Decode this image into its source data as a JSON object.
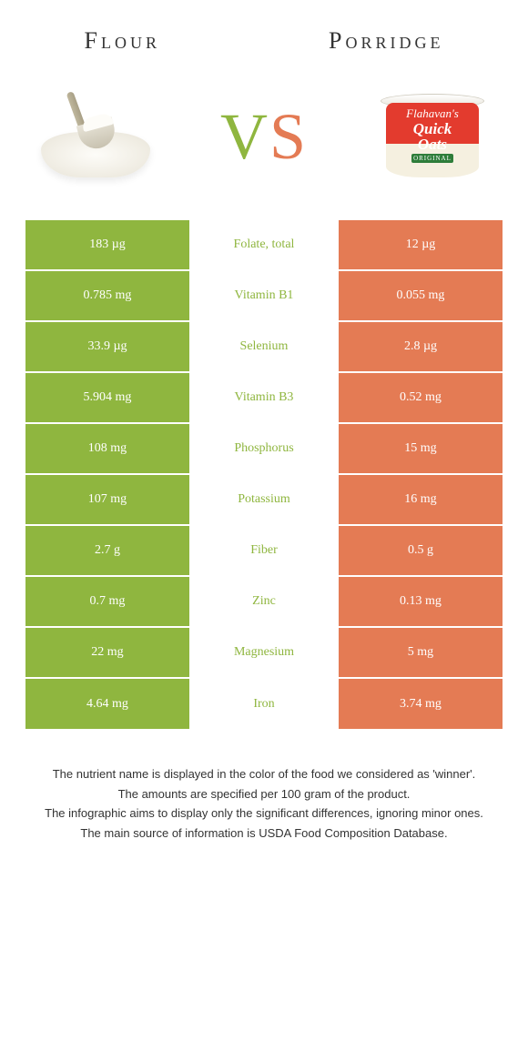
{
  "header": {
    "left_title": "Flour",
    "right_title": "Porridge",
    "vs_v": "V",
    "vs_s": "S"
  },
  "porridge_label": {
    "brand": "Flahavan's",
    "product_line1": "Quick",
    "product_line2": "Oats",
    "variant": "ORIGINAL"
  },
  "colors": {
    "left_bg": "#8fb63f",
    "right_bg": "#e47b54",
    "winner_left": "#8fb63f",
    "winner_right": "#e47b54"
  },
  "rows": [
    {
      "left": "183 µg",
      "label": "Folate, total",
      "right": "12 µg",
      "winner": "left"
    },
    {
      "left": "0.785 mg",
      "label": "Vitamin B1",
      "right": "0.055 mg",
      "winner": "left"
    },
    {
      "left": "33.9 µg",
      "label": "Selenium",
      "right": "2.8 µg",
      "winner": "left"
    },
    {
      "left": "5.904 mg",
      "label": "Vitamin B3",
      "right": "0.52 mg",
      "winner": "left"
    },
    {
      "left": "108 mg",
      "label": "Phosphorus",
      "right": "15 mg",
      "winner": "left"
    },
    {
      "left": "107 mg",
      "label": "Potassium",
      "right": "16 mg",
      "winner": "left"
    },
    {
      "left": "2.7 g",
      "label": "Fiber",
      "right": "0.5 g",
      "winner": "left"
    },
    {
      "left": "0.7 mg",
      "label": "Zinc",
      "right": "0.13 mg",
      "winner": "left"
    },
    {
      "left": "22 mg",
      "label": "Magnesium",
      "right": "5 mg",
      "winner": "left"
    },
    {
      "left": "4.64 mg",
      "label": "Iron",
      "right": "3.74 mg",
      "winner": "left"
    }
  ],
  "footnotes": [
    "The nutrient name is displayed in the color of the food we considered as 'winner'.",
    "The amounts are specified per 100 gram of the product.",
    "The infographic aims to display only the significant differences, ignoring minor ones.",
    "The main source of information is USDA Food Composition Database."
  ]
}
